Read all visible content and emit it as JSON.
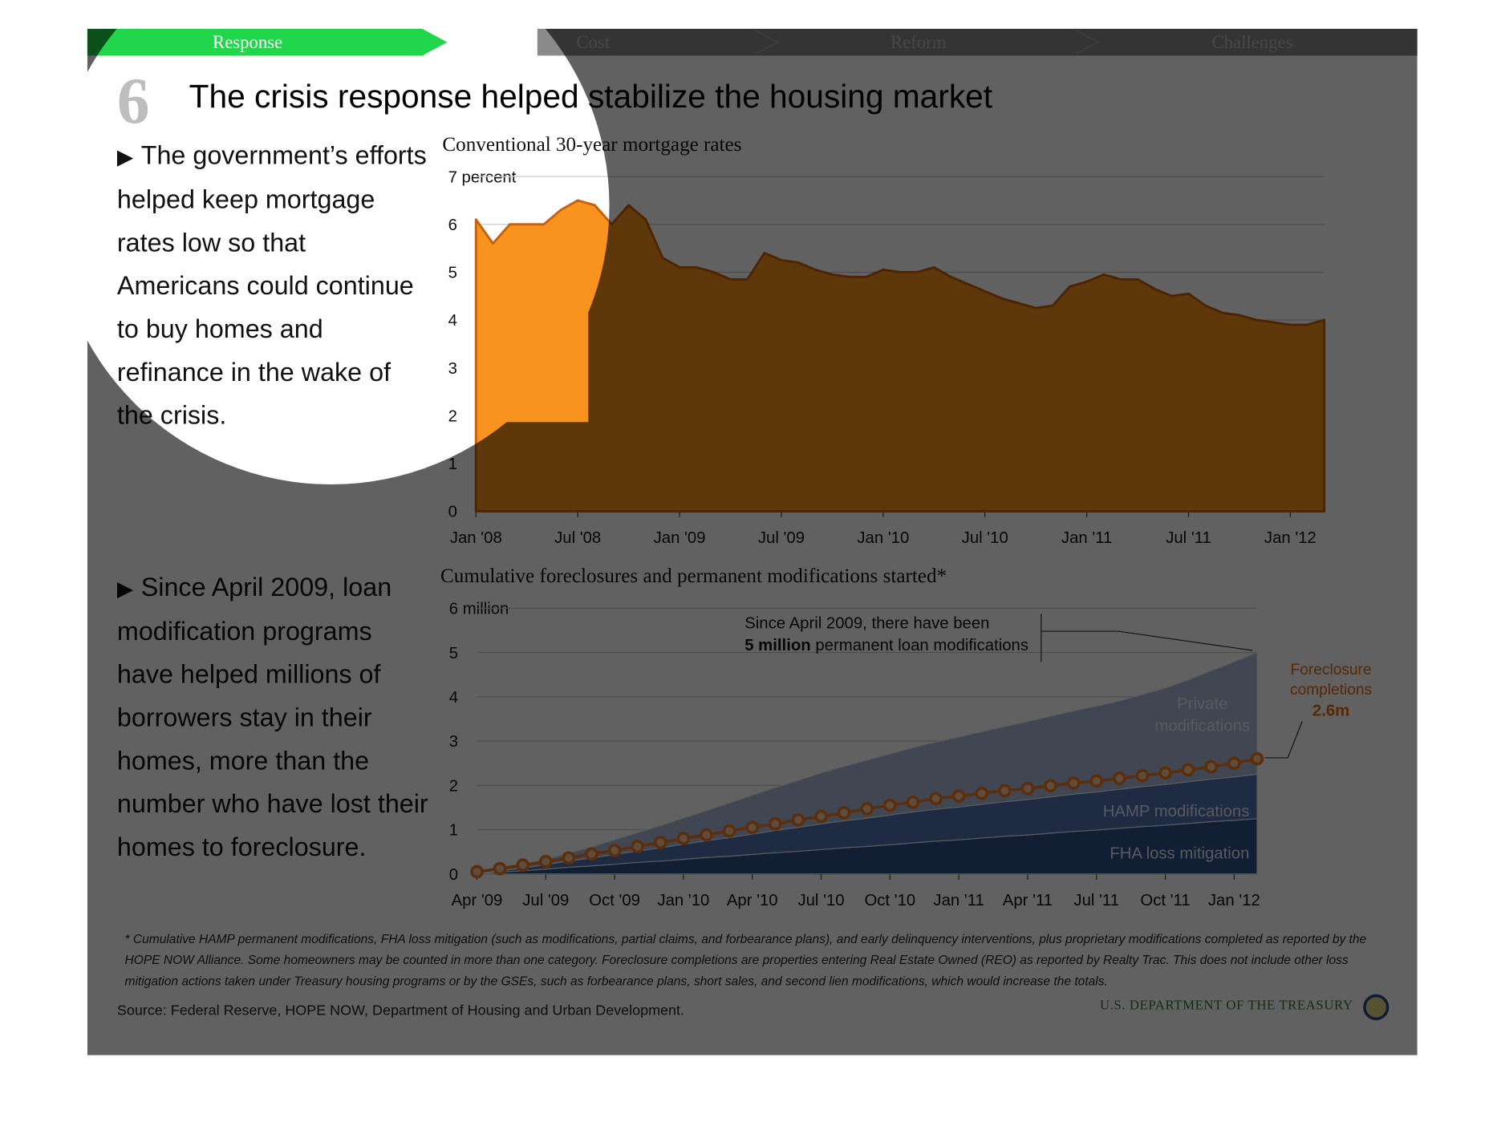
{
  "nav": {
    "active": "Response",
    "items": [
      "Cost",
      "Reform",
      "Challenges"
    ]
  },
  "section_number": "6",
  "headline": "The crisis response helped stabilize the housing market",
  "bullets": [
    "The government’s efforts helped keep mortgage rates low so that Americans could continue to buy homes and refinance in the wake of the crisis.",
    "Since April 2009, loan modification programs have helped millions of borrowers stay in their homes, more than the number who have lost their homes to foreclosure."
  ],
  "footnote": "* Cumulative HAMP permanent modifications, FHA loss mitigation (such as modifications, partial claims, and forbearance plans), and early delinquency interventions, plus proprietary modifications completed as reported by the HOPE NOW Alliance. Some homeowners may be counted in more than one category. Foreclosure completions are properties entering Real Estate Owned (REO) as reported by Realty Trac. This does not include other loss mitigation actions taken under Treasury housing programs  or by the GSEs, such as forbearance plans, short sales, and second lien modifications, which would increase the totals.",
  "source": "Source: Federal Reserve, HOPE NOW, Department of Housing and Urban Development.",
  "agency": "U.S. DEPARTMENT OF THE TREASURY",
  "chart_data": [
    {
      "type": "area",
      "title": "Conventional 30-year mortgage rates",
      "color": "#f7931e",
      "grid": true,
      "x": [
        "2008-01",
        "2008-02",
        "2008-03",
        "2008-04",
        "2008-05",
        "2008-06",
        "2008-07",
        "2008-08",
        "2008-09",
        "2008-10",
        "2008-11",
        "2008-12",
        "2009-01",
        "2009-02",
        "2009-03",
        "2009-04",
        "2009-05",
        "2009-06",
        "2009-07",
        "2009-08",
        "2009-09",
        "2009-10",
        "2009-11",
        "2009-12",
        "2010-01",
        "2010-02",
        "2010-03",
        "2010-04",
        "2010-05",
        "2010-06",
        "2010-07",
        "2010-08",
        "2010-09",
        "2010-10",
        "2010-11",
        "2010-12",
        "2011-01",
        "2011-02",
        "2011-03",
        "2011-04",
        "2011-05",
        "2011-06",
        "2011-07",
        "2011-08",
        "2011-09",
        "2011-10",
        "2011-11",
        "2011-12",
        "2012-01",
        "2012-02",
        "2012-03"
      ],
      "values": [
        6.1,
        5.6,
        6.0,
        6.0,
        6.0,
        6.3,
        6.5,
        6.4,
        6.0,
        6.4,
        6.1,
        5.3,
        5.1,
        5.1,
        5.0,
        4.85,
        4.85,
        5.4,
        5.25,
        5.2,
        5.05,
        4.95,
        4.9,
        4.9,
        5.05,
        5.0,
        5.0,
        5.1,
        4.9,
        4.75,
        4.6,
        4.45,
        4.35,
        4.25,
        4.3,
        4.7,
        4.8,
        4.95,
        4.85,
        4.85,
        4.65,
        4.5,
        4.55,
        4.3,
        4.15,
        4.1,
        4.0,
        3.95,
        3.9,
        3.9,
        4.0
      ],
      "xlim": [
        "2008-01",
        "2012-03"
      ],
      "xticks": [
        {
          "value": "2008-01",
          "label": "Jan '08"
        },
        {
          "value": "2008-07",
          "label": "Jul '08"
        },
        {
          "value": "2009-01",
          "label": "Jan '09"
        },
        {
          "value": "2009-07",
          "label": "Jul '09"
        },
        {
          "value": "2010-01",
          "label": "Jan '10"
        },
        {
          "value": "2010-07",
          "label": "Jul '10"
        },
        {
          "value": "2011-01",
          "label": "Jan '11"
        },
        {
          "value": "2011-07",
          "label": "Jul '11"
        },
        {
          "value": "2012-01",
          "label": "Jan '12"
        }
      ],
      "ylim": [
        0,
        7
      ],
      "yticks": [
        0,
        1,
        2,
        3,
        4,
        5,
        6,
        {
          "value": 7,
          "label": "7 percent"
        }
      ]
    },
    {
      "type": "stacked_area",
      "title": "Cumulative foreclosures and permanent modifications started*",
      "grid": true,
      "x": [
        "2009-04",
        "2009-05",
        "2009-06",
        "2009-07",
        "2009-08",
        "2009-09",
        "2009-10",
        "2009-11",
        "2009-12",
        "2010-01",
        "2010-02",
        "2010-03",
        "2010-04",
        "2010-05",
        "2010-06",
        "2010-07",
        "2010-08",
        "2010-09",
        "2010-10",
        "2010-11",
        "2010-12",
        "2011-01",
        "2011-02",
        "2011-03",
        "2011-04",
        "2011-05",
        "2011-06",
        "2011-07",
        "2011-08",
        "2011-09",
        "2011-10",
        "2011-11",
        "2011-12",
        "2012-01",
        "2012-02"
      ],
      "series": [
        {
          "name": "FHA loss mitigation",
          "color": "#2f4f86",
          "values": [
            0,
            0.04,
            0.07,
            0.11,
            0.15,
            0.18,
            0.22,
            0.26,
            0.29,
            0.33,
            0.37,
            0.4,
            0.44,
            0.48,
            0.51,
            0.55,
            0.59,
            0.62,
            0.66,
            0.7,
            0.74,
            0.77,
            0.81,
            0.85,
            0.88,
            0.92,
            0.96,
            0.99,
            1.03,
            1.07,
            1.1,
            1.14,
            1.18,
            1.21,
            1.25
          ]
        },
        {
          "name": "HAMP modifications",
          "color": "#4f72b0",
          "values": [
            0,
            0.03,
            0.06,
            0.1,
            0.14,
            0.18,
            0.22,
            0.26,
            0.3,
            0.34,
            0.38,
            0.42,
            0.46,
            0.5,
            0.54,
            0.58,
            0.61,
            0.64,
            0.67,
            0.7,
            0.72,
            0.74,
            0.76,
            0.78,
            0.8,
            0.82,
            0.84,
            0.86,
            0.88,
            0.9,
            0.92,
            0.94,
            0.96,
            0.98,
            1.0
          ]
        },
        {
          "name": "Private modifications",
          "color": "#a8b9d8",
          "values": [
            0,
            0.03,
            0.07,
            0.12,
            0.18,
            0.25,
            0.33,
            0.41,
            0.5,
            0.59,
            0.68,
            0.78,
            0.88,
            0.97,
            1.06,
            1.15,
            1.23,
            1.31,
            1.38,
            1.45,
            1.52,
            1.58,
            1.64,
            1.7,
            1.76,
            1.82,
            1.88,
            1.94,
            2.0,
            2.08,
            2.18,
            2.3,
            2.45,
            2.6,
            2.75
          ]
        },
        {
          "name": "Foreclosure completions",
          "type": "line",
          "color": "#f07a22",
          "values": [
            0.05,
            0.12,
            0.2,
            0.28,
            0.36,
            0.45,
            0.53,
            0.62,
            0.71,
            0.8,
            0.88,
            0.97,
            1.05,
            1.13,
            1.22,
            1.3,
            1.38,
            1.47,
            1.55,
            1.62,
            1.7,
            1.76,
            1.82,
            1.88,
            1.93,
            1.99,
            2.05,
            2.1,
            2.16,
            2.22,
            2.28,
            2.35,
            2.42,
            2.5,
            2.6
          ],
          "value_labels": [
            null,
            null,
            null,
            null,
            null,
            null,
            null,
            null,
            null,
            null,
            null,
            null,
            null,
            null,
            null,
            null,
            null,
            null,
            null,
            null,
            null,
            null,
            null,
            null,
            null,
            null,
            null,
            null,
            null,
            null,
            null,
            null,
            null,
            null,
            "2.6m"
          ]
        }
      ],
      "annotation": {
        "text_before": "Since April 2009, there have been",
        "emphasis": "5 million",
        "text_after": "permanent loan modifications"
      },
      "xlim": [
        "2009-04",
        "2012-02"
      ],
      "xticks": [
        {
          "value": "2009-04",
          "label": "Apr '09"
        },
        {
          "value": "2009-07",
          "label": "Jul '09"
        },
        {
          "value": "2009-10",
          "label": "Oct '09"
        },
        {
          "value": "2010-01",
          "label": "Jan '10"
        },
        {
          "value": "2010-04",
          "label": "Apr '10"
        },
        {
          "value": "2010-07",
          "label": "Jul '10"
        },
        {
          "value": "2010-10",
          "label": "Oct '10"
        },
        {
          "value": "2011-01",
          "label": "Jan '11"
        },
        {
          "value": "2011-04",
          "label": "Apr '11"
        },
        {
          "value": "2011-07",
          "label": "Jul '11"
        },
        {
          "value": "2011-10",
          "label": "Oct '11"
        },
        {
          "value": "2012-01",
          "label": "Jan '12"
        }
      ],
      "ylim": [
        0,
        6
      ],
      "yticks": [
        0,
        1,
        2,
        3,
        4,
        5,
        {
          "value": 6,
          "label": "6 million"
        }
      ]
    }
  ]
}
